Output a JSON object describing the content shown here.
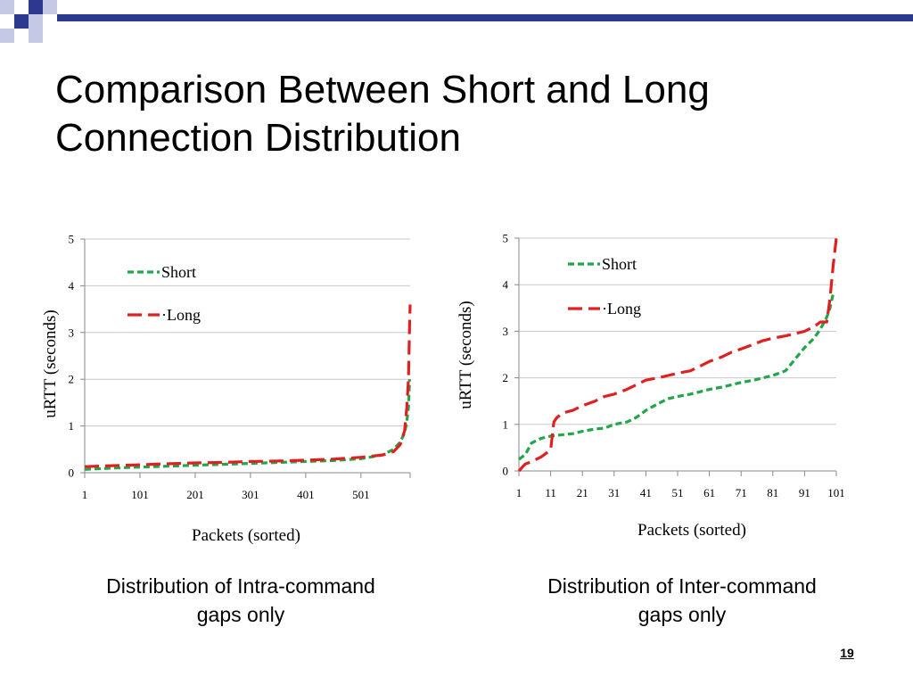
{
  "slide": {
    "title_line1": "Comparison Between Short and Long",
    "title_line2": "Connection Distribution",
    "caption_left_line1": "Distribution of Intra-command",
    "caption_left_line2": "gaps only",
    "caption_right_line1": "Distribution of Inter-command",
    "caption_right_line2": "gaps only",
    "page_number": "19",
    "colors": {
      "accent_blue": "#2b3a8f",
      "accent_light": "#c5c9e6",
      "short": "#22a64a",
      "long": "#e02020"
    }
  },
  "chart_data": [
    {
      "type": "line",
      "title": "",
      "xlabel": "Packets (sorted)",
      "ylabel": "uRTT (seconds)",
      "ylim": [
        0,
        5
      ],
      "yticks": [
        "0",
        "1",
        "2",
        "3",
        "4",
        "5"
      ],
      "xtick_labels": [
        "1",
        "101",
        "201",
        "301",
        "401",
        "501"
      ],
      "xlim": [
        1,
        590
      ],
      "grid": true,
      "legend_position": "top-left",
      "legend_labels": [
        "Short",
        "·Long"
      ],
      "series": [
        {
          "name": "Short",
          "color": "#22a64a",
          "dash": "dashed",
          "x": [
            1,
            50,
            101,
            150,
            201,
            250,
            301,
            350,
            401,
            450,
            501,
            540,
            560,
            572,
            580,
            584,
            587,
            588,
            589
          ],
          "y": [
            0.07,
            0.1,
            0.12,
            0.14,
            0.16,
            0.18,
            0.2,
            0.22,
            0.24,
            0.26,
            0.3,
            0.38,
            0.5,
            0.65,
            0.85,
            1.1,
            1.4,
            1.7,
            2.0
          ]
        },
        {
          "name": "Long",
          "color": "#e02020",
          "dash": "longdash",
          "x": [
            1,
            50,
            101,
            150,
            201,
            250,
            301,
            350,
            401,
            450,
            501,
            540,
            560,
            572,
            580,
            584,
            587,
            588,
            589,
            590
          ],
          "y": [
            0.13,
            0.15,
            0.17,
            0.19,
            0.21,
            0.22,
            0.24,
            0.25,
            0.27,
            0.29,
            0.33,
            0.38,
            0.45,
            0.6,
            0.9,
            1.4,
            2.0,
            2.6,
            3.2,
            3.6
          ]
        }
      ]
    },
    {
      "type": "line",
      "title": "",
      "xlabel": "Packets (sorted)",
      "ylabel": "uRTT (seconds)",
      "ylim": [
        0,
        5
      ],
      "yticks": [
        "0",
        "1",
        "2",
        "3",
        "4",
        "5"
      ],
      "xtick_labels": [
        "1",
        "11",
        "21",
        "31",
        "41",
        "51",
        "61",
        "71",
        "81",
        "91",
        "101"
      ],
      "xlim": [
        1,
        101
      ],
      "grid": true,
      "legend_position": "top-left",
      "legend_labels": [
        "Short",
        "·Long"
      ],
      "series": [
        {
          "name": "Short",
          "color": "#22a64a",
          "dash": "dashed",
          "x": [
            1,
            3,
            5,
            8,
            11,
            15,
            18,
            21,
            25,
            28,
            31,
            35,
            38,
            41,
            45,
            48,
            51,
            55,
            58,
            61,
            65,
            68,
            71,
            75,
            78,
            81,
            85,
            88,
            91,
            94,
            96,
            98,
            99,
            100
          ],
          "y": [
            0.25,
            0.35,
            0.6,
            0.7,
            0.75,
            0.78,
            0.8,
            0.85,
            0.9,
            0.92,
            1.0,
            1.05,
            1.15,
            1.3,
            1.45,
            1.55,
            1.6,
            1.65,
            1.7,
            1.75,
            1.8,
            1.85,
            1.9,
            1.95,
            2.0,
            2.05,
            2.15,
            2.4,
            2.65,
            2.85,
            3.05,
            3.3,
            3.5,
            3.8
          ]
        },
        {
          "name": "Long",
          "color": "#e02020",
          "dash": "longdash",
          "x": [
            1,
            3,
            5,
            8,
            10,
            11,
            12,
            13,
            15,
            18,
            21,
            25,
            28,
            31,
            35,
            38,
            41,
            45,
            48,
            51,
            55,
            58,
            61,
            65,
            68,
            71,
            75,
            78,
            81,
            85,
            88,
            91,
            94,
            96,
            98,
            99,
            100,
            101
          ],
          "y": [
            0.0,
            0.15,
            0.2,
            0.3,
            0.4,
            0.45,
            1.05,
            1.15,
            1.25,
            1.3,
            1.4,
            1.5,
            1.6,
            1.65,
            1.75,
            1.85,
            1.95,
            2.0,
            2.05,
            2.1,
            2.15,
            2.25,
            2.35,
            2.45,
            2.55,
            2.62,
            2.72,
            2.8,
            2.85,
            2.9,
            2.95,
            3.0,
            3.1,
            3.2,
            3.2,
            3.7,
            4.4,
            5.0
          ]
        }
      ]
    }
  ]
}
